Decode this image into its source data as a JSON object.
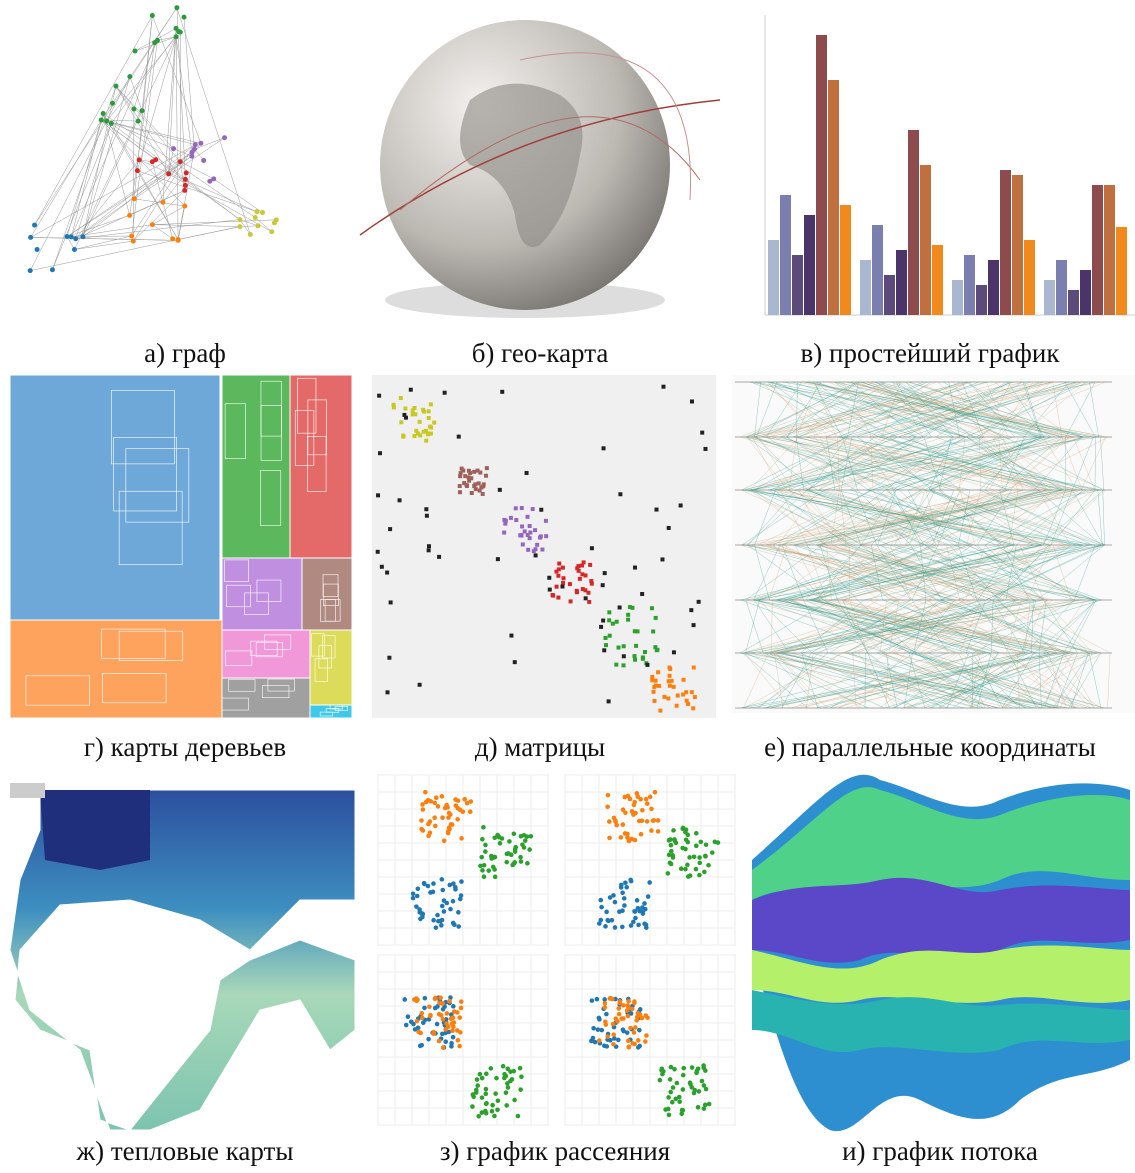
{
  "panels": [
    {
      "caption": "а) граф"
    },
    {
      "caption": "б) гео-карта"
    },
    {
      "caption": "в) простейший график"
    },
    {
      "caption": "г) карты деревьев"
    },
    {
      "caption": "д) матрицы"
    },
    {
      "caption": "е) параллельные координаты"
    },
    {
      "caption": "ж) тепловые карты"
    },
    {
      "caption": "з) график рассеяния"
    },
    {
      "caption": "и) график потока"
    }
  ]
}
